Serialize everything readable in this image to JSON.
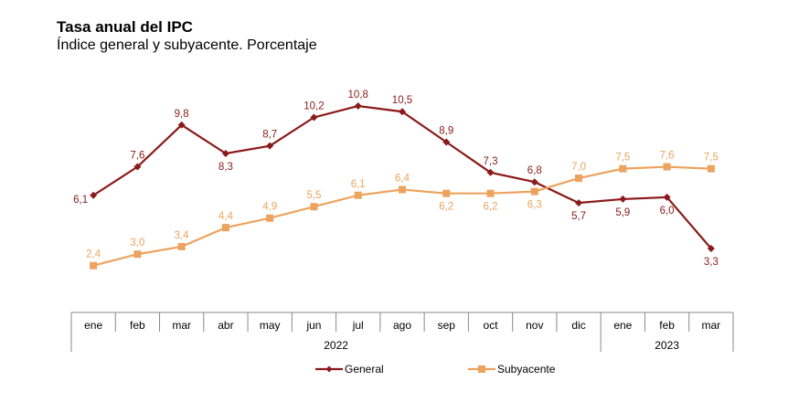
{
  "chart_data": {
    "type": "line",
    "title": "Tasa anual del IPC",
    "subtitle": "Índice general y subyacente. Porcentaje",
    "categories": [
      "ene",
      "feb",
      "mar",
      "abr",
      "may",
      "jun",
      "jul",
      "ago",
      "sep",
      "oct",
      "nov",
      "dic",
      "ene",
      "feb",
      "mar"
    ],
    "years": [
      {
        "label": "2022",
        "count": 12
      },
      {
        "label": "2023",
        "count": 3
      }
    ],
    "ylim": [
      0,
      11
    ],
    "grid": false,
    "legend_position": "bottom",
    "series": [
      {
        "name": "General",
        "color": "#8b1a1a",
        "marker": "diamond",
        "labels": [
          "6,1",
          "7,6",
          "9,8",
          "8,3",
          "8,7",
          "10,2",
          "10,8",
          "10,5",
          "8,9",
          "7,3",
          "6,8",
          "5,7",
          "5,9",
          "6,0",
          "3,3"
        ],
        "values": [
          6.1,
          7.6,
          9.8,
          8.3,
          8.7,
          10.2,
          10.8,
          10.5,
          8.9,
          7.3,
          6.8,
          5.7,
          5.9,
          6.0,
          3.3
        ]
      },
      {
        "name": "Subyacente",
        "color": "#eca35e",
        "marker": "square",
        "labels": [
          "2,4",
          "3,0",
          "3,4",
          "4,4",
          "4,9",
          "5,5",
          "6,1",
          "6,4",
          "6,2",
          "6,2",
          "6,3",
          "7,0",
          "7,5",
          "7,6",
          "7,5"
        ],
        "values": [
          2.4,
          3.0,
          3.4,
          4.4,
          4.9,
          5.5,
          6.1,
          6.4,
          6.2,
          6.2,
          6.3,
          7.0,
          7.5,
          7.6,
          7.5
        ]
      }
    ]
  }
}
